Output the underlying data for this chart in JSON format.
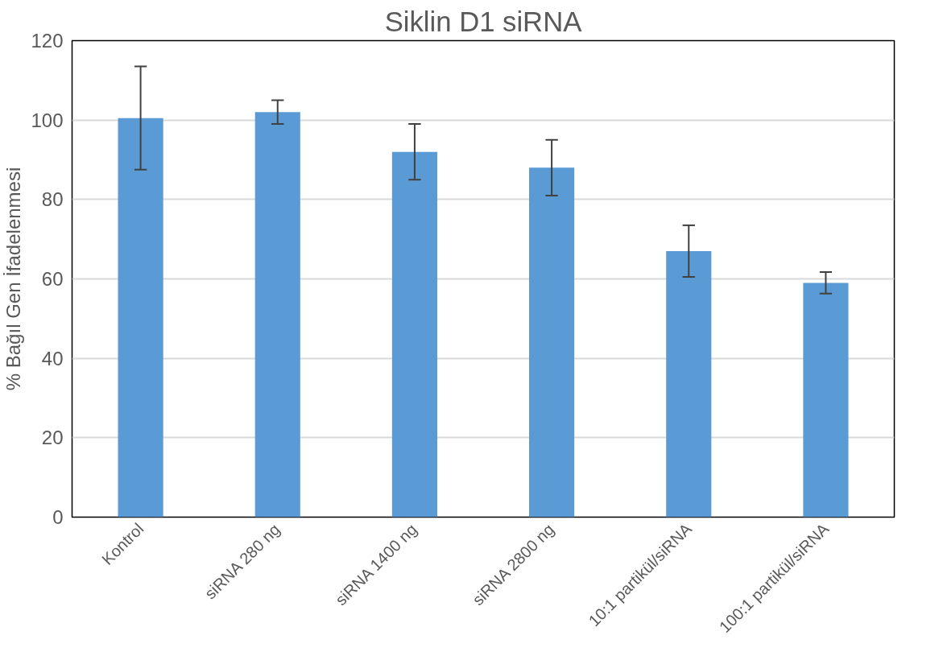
{
  "chart_data": {
    "type": "bar",
    "title": "Siklin D1 siRNA",
    "ylabel": "% Bağıl Gen İfadelenmesi",
    "categories": [
      "Kontrol",
      "siRNA 280 ng",
      "siRNA 1400 ng",
      "siRNA 2800 ng",
      "10:1 partikül/siRNA",
      "100:1 partikül/siRNA"
    ],
    "values": [
      100.5,
      102,
      92,
      88,
      67,
      59
    ],
    "errors": [
      13,
      3,
      7,
      7,
      6.5,
      2.7
    ],
    "color": "#5b9bd5",
    "ylim": [
      0,
      120
    ],
    "yticks": [
      0,
      20,
      40,
      60,
      80,
      100,
      120
    ],
    "grid": "y"
  }
}
